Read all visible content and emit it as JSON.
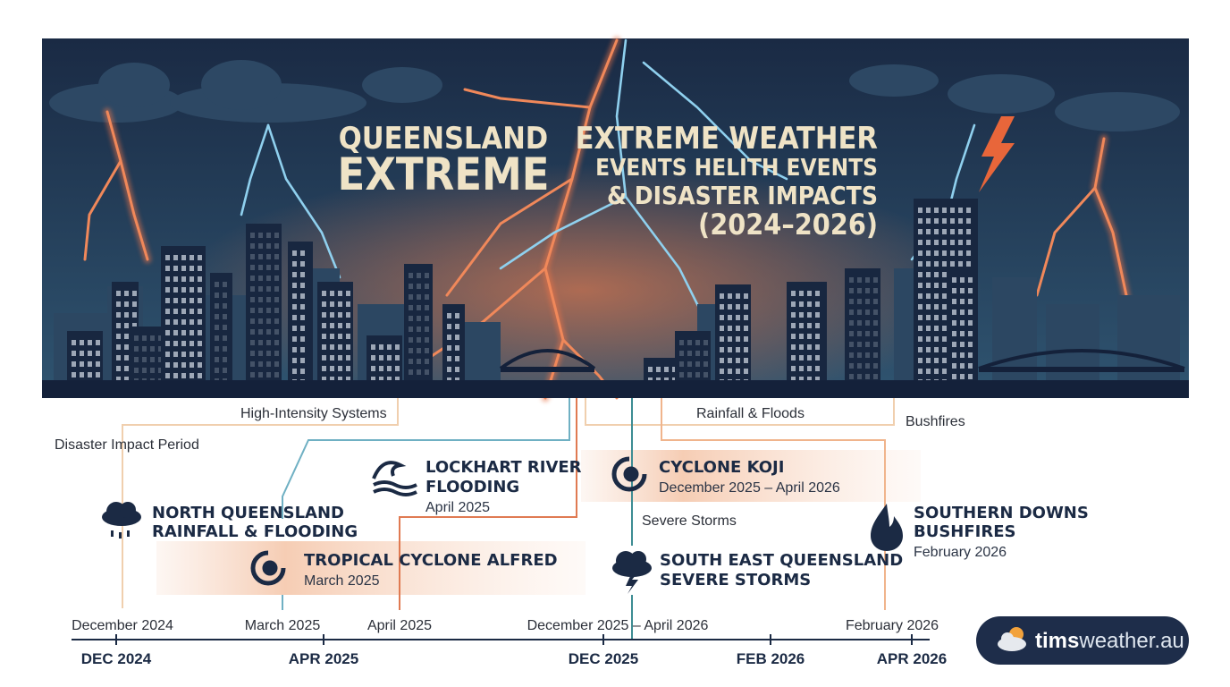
{
  "header": {
    "title_lines": [
      "QUEENSLAND",
      "EXTREME"
    ],
    "subtitle_lines": [
      "EXTREME WEATHER",
      "EVENTS HELITH EVENTS",
      "& DISASTER IMPACTS",
      "(2024–2026)"
    ]
  },
  "categories": {
    "high_intensity": "High-Intensity Systems",
    "disaster_period": "Disaster Impact Period",
    "rainfall": "Rainfall & Floods",
    "bushfires": "Bushfires",
    "storms": "Severe Storms"
  },
  "events": [
    {
      "title_lines": [
        "NORTH QUEENSLAND",
        "RAINFALL & FLOODING"
      ]
    },
    {
      "title_lines": [
        "TROPICAL CYCLONE ALFRED"
      ],
      "date": "March 2025"
    },
    {
      "title_lines": [
        "LOCKHART RIVER",
        "FLOODING"
      ],
      "date": "April 2025"
    },
    {
      "title_lines": [
        "CYCLONE KOJI"
      ],
      "date": "December 2025 – April 2026"
    },
    {
      "title_lines": [
        "SOUTH EAST QUEENSLAND",
        "SEVERE STORMS"
      ]
    },
    {
      "title_lines": [
        "SOUTHERN DOWNS",
        "BUSHFIRES"
      ],
      "date": "February 2026"
    }
  ],
  "timeline": {
    "date_labels": [
      "December 2024",
      "March 2025",
      "April 2025",
      "December 2025 – April 2026",
      "February 2026"
    ],
    "axis_labels": [
      "DEC 2024",
      "APR 2025",
      "DEC 2025",
      "FEB 2026",
      "APR 2026"
    ]
  },
  "logo": {
    "bold": "tims",
    "light": "weather.au"
  }
}
